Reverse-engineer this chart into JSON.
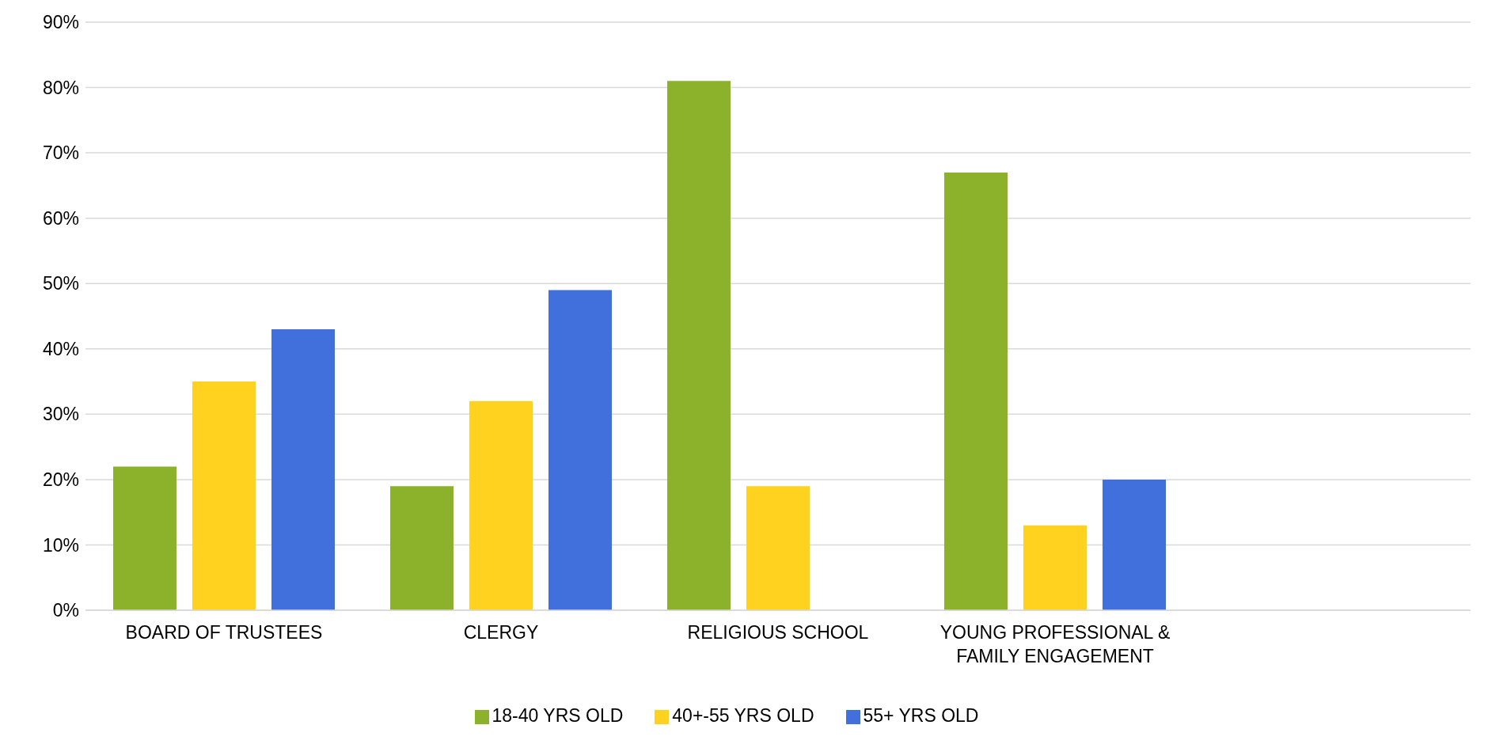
{
  "chart_data": {
    "type": "bar",
    "categories": [
      "BOARD OF TRUSTEES",
      "CLERGY",
      "RELIGIOUS SCHOOL",
      "YOUNG PROFESSIONAL & FAMILY ENGAGEMENT",
      null
    ],
    "series": [
      {
        "name": "18-40 YRS OLD",
        "color": "#8bb22a",
        "values": [
          22,
          19,
          81,
          67,
          null
        ]
      },
      {
        "name": "40+-55 YRS OLD",
        "color": "#ffd21f",
        "values": [
          35,
          32,
          19,
          13,
          null
        ]
      },
      {
        "name": "55+ YRS OLD",
        "color": "#4170dc",
        "values": [
          43,
          49,
          null,
          20,
          null
        ]
      }
    ],
    "ylim": [
      0,
      90
    ],
    "yticks": [
      {
        "value": 0,
        "label": "0%"
      },
      {
        "value": 10,
        "label": "10%"
      },
      {
        "value": 20,
        "label": "20%"
      },
      {
        "value": 30,
        "label": "30%"
      },
      {
        "value": 40,
        "label": "40%"
      },
      {
        "value": 50,
        "label": "50%"
      },
      {
        "value": 60,
        "label": "60%"
      },
      {
        "value": 70,
        "label": "70%"
      },
      {
        "value": 80,
        "label": "80%"
      },
      {
        "value": 90,
        "label": "90%"
      }
    ],
    "grid": "y",
    "legend": "bottom"
  }
}
